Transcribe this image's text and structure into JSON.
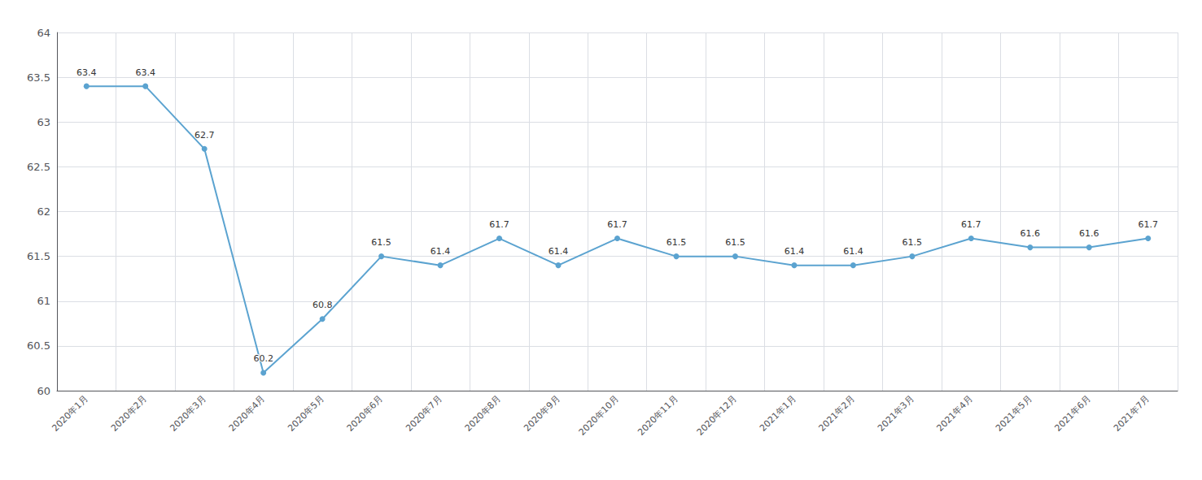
{
  "chart_data": {
    "type": "line",
    "categories": [
      "2020年1月",
      "2020年2月",
      "2020年3月",
      "2020年4月",
      "2020年5月",
      "2020年6月",
      "2020年7月",
      "2020年8月",
      "2020年9月",
      "2020年10月",
      "2020年11月",
      "2020年12月",
      "2021年1月",
      "2021年2月",
      "2021年3月",
      "2021年4月",
      "2021年5月",
      "2021年6月",
      "2021年7月"
    ],
    "values": [
      63.4,
      63.4,
      62.7,
      60.2,
      60.8,
      61.5,
      61.4,
      61.7,
      61.4,
      61.7,
      61.5,
      61.5,
      61.4,
      61.4,
      61.5,
      61.7,
      61.6,
      61.6,
      61.7
    ],
    "color": "#5ba3d0",
    "marker": "circle",
    "ylim": [
      60,
      64
    ],
    "yticks": [
      60,
      60.5,
      61,
      61.5,
      62,
      62.5,
      63,
      63.5,
      64
    ],
    "grid": true,
    "data_labels": true
  }
}
